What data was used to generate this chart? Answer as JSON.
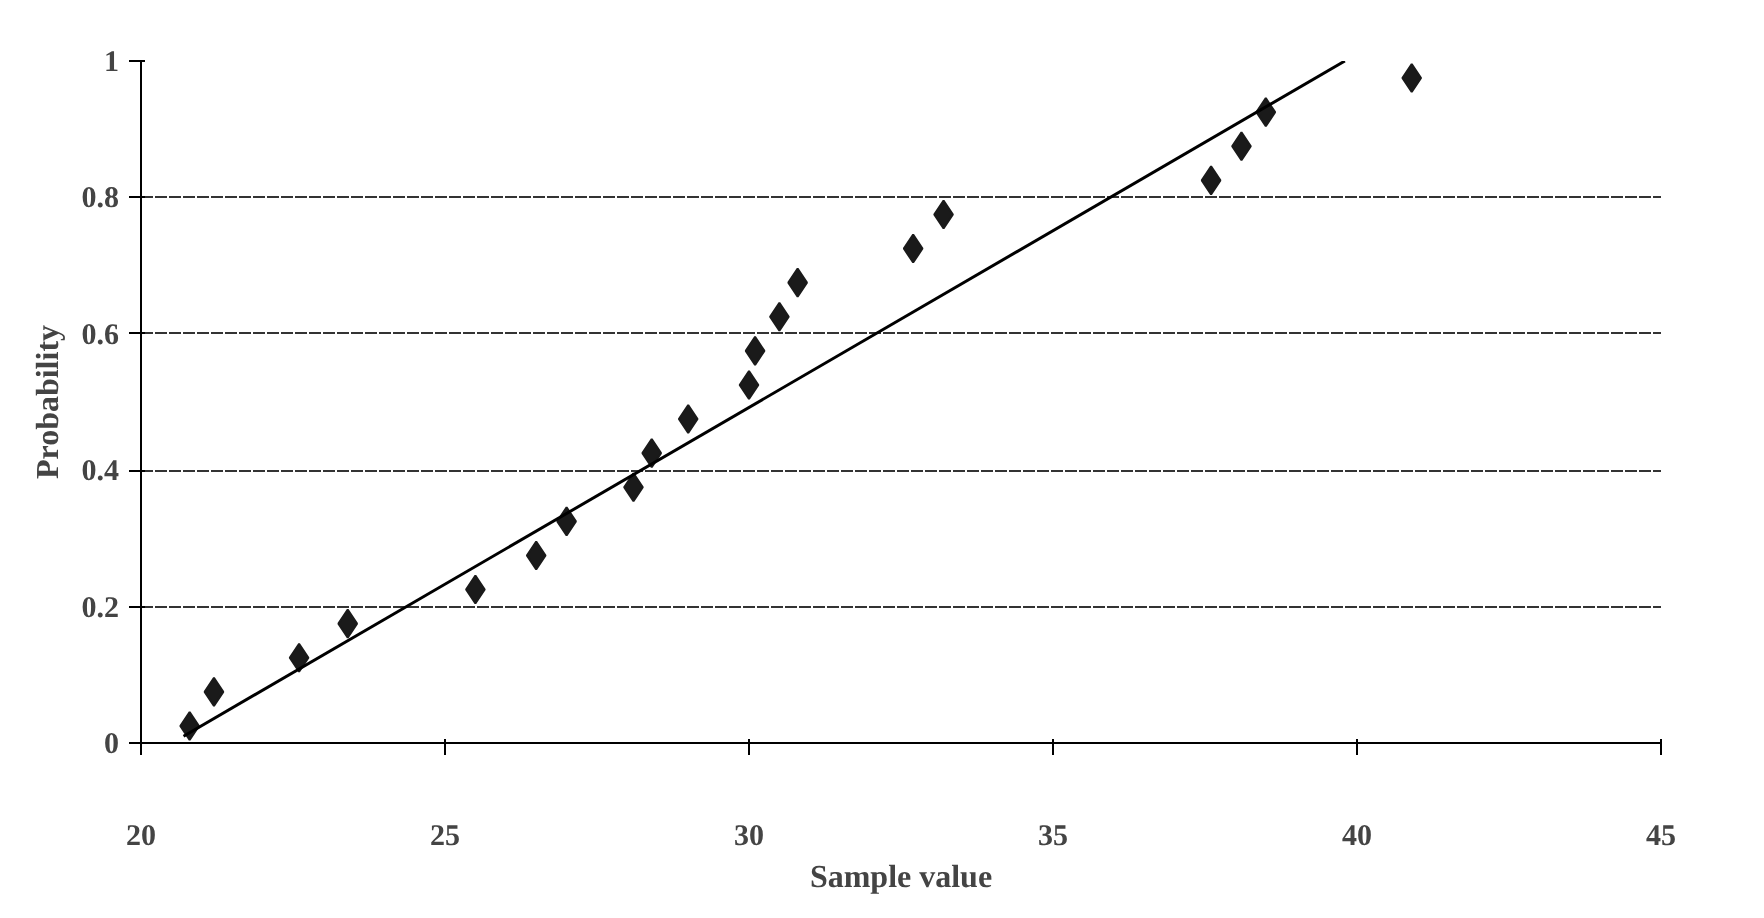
{
  "chart_data": {
    "type": "scatter",
    "xlabel": "Sample value",
    "ylabel": "Probability",
    "xlim": [
      20,
      45
    ],
    "xticks": [
      20,
      25,
      30,
      35,
      40,
      45
    ],
    "ylim": [
      0,
      1
    ],
    "yticks": [
      0,
      0.2,
      0.4,
      0.6,
      0.8,
      1
    ],
    "grid": "y",
    "series": [
      {
        "marker": "diamond",
        "color": "#1a1a1a",
        "x": [
          20.8,
          21.2,
          22.6,
          23.4,
          25.5,
          26.5,
          27.0,
          28.1,
          28.4,
          29.0,
          30.0,
          30.1,
          30.5,
          30.8,
          32.7,
          33.2,
          37.6,
          38.1,
          38.5,
          40.9
        ],
        "values": [
          0.025,
          0.075,
          0.125,
          0.175,
          0.225,
          0.275,
          0.325,
          0.375,
          0.425,
          0.475,
          0.525,
          0.575,
          0.625,
          0.675,
          0.725,
          0.775,
          0.825,
          0.875,
          0.925,
          0.975
        ]
      },
      {
        "type": "line",
        "marker": "none",
        "color": "#000000",
        "x": [
          20.7,
          39.8
        ],
        "values": [
          0.01,
          1.0
        ]
      }
    ]
  }
}
